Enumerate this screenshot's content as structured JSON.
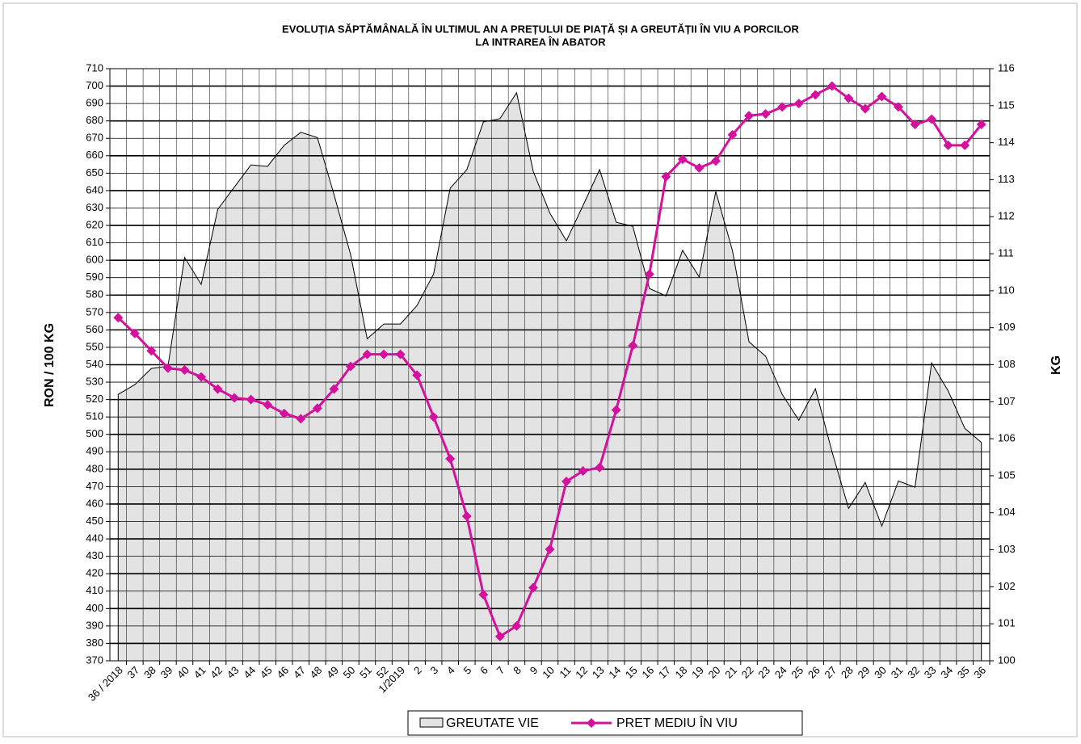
{
  "chart_data": {
    "type": "line",
    "title": [
      "EVOLUȚIA SĂPTĂMÂNALĂ ÎN ULTIMUL AN A PREȚULUI  DE PIAȚĂ ȘI A GREUTĂȚII  ÎN VIU A PORCILOR",
      "LA INTRAREA ÎN ABATOR"
    ],
    "y_label": "RON / 100 KG",
    "y2_label": "KG",
    "categories": [
      "36 / 2018",
      "37",
      "38",
      "39",
      "40",
      "41",
      "42",
      "43",
      "44",
      "45",
      "46",
      "47",
      "48",
      "49",
      "50",
      "51",
      "52",
      "1/2019",
      "2",
      "3",
      "4",
      "5",
      "6",
      "7",
      "8",
      "9",
      "10",
      "11",
      "12",
      "13",
      "14",
      "15",
      "16",
      "17",
      "18",
      "19",
      "20",
      "21",
      "22",
      "23",
      "24",
      "25",
      "26",
      "27",
      "28",
      "29",
      "30",
      "31",
      "32",
      "33",
      "34",
      "35",
      "36"
    ],
    "series": [
      {
        "name": "GREUTATE VIE",
        "type": "area",
        "axis": "y2",
        "color": "#e3e3e3",
        "values": [
          107.2,
          107.46,
          107.9,
          107.96,
          110.9,
          110.17,
          112.2,
          112.8,
          113.4,
          113.36,
          113.93,
          114.28,
          114.14,
          112.6,
          110.98,
          108.7,
          109.1,
          109.1,
          109.6,
          110.45,
          112.77,
          113.27,
          114.56,
          114.65,
          115.35,
          113.23,
          112.1,
          111.35,
          112.3,
          113.27,
          111.85,
          111.74,
          110.06,
          109.86,
          111.09,
          110.37,
          112.68,
          111.09,
          108.62,
          108.23,
          107.2,
          106.5,
          107.35,
          105.65,
          104.12,
          104.82,
          103.64,
          104.86,
          104.69,
          108.05,
          107.29,
          106.28,
          105.9
        ]
      },
      {
        "name": "PRET MEDIU ÎN VIU",
        "type": "line",
        "color": "#d4119c",
        "values": [
          567,
          558,
          548,
          538,
          537,
          533,
          526,
          521,
          520,
          517,
          512,
          509,
          515,
          526,
          539,
          546,
          546,
          546,
          534,
          510,
          486,
          453,
          408,
          384,
          390,
          412,
          434,
          473,
          479,
          481,
          514,
          551,
          592,
          648,
          658,
          653,
          657,
          672,
          683,
          684,
          688,
          690,
          695,
          700,
          693,
          687,
          694,
          688,
          678,
          681,
          666,
          666,
          678
        ]
      }
    ],
    "ylim": [
      370,
      710
    ],
    "yticks": [
      370,
      380,
      390,
      400,
      410,
      420,
      430,
      440,
      450,
      460,
      470,
      480,
      490,
      500,
      510,
      520,
      530,
      540,
      550,
      560,
      570,
      580,
      590,
      600,
      610,
      620,
      630,
      640,
      650,
      660,
      670,
      680,
      690,
      700,
      710
    ],
    "y2lim": [
      100,
      116
    ],
    "y2ticks": [
      100,
      101,
      102,
      103,
      104,
      105,
      106,
      107,
      108,
      109,
      110,
      111,
      112,
      113,
      114,
      115,
      116
    ],
    "grid": true
  }
}
